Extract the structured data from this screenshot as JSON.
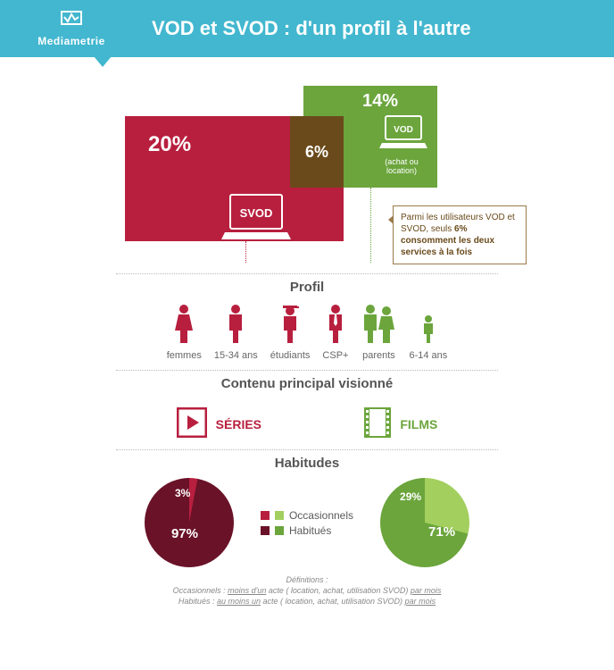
{
  "brand": "Mediametrie",
  "title": "VOD et SVOD : d'un profil à l'autre",
  "colors": {
    "header": "#42b7cf",
    "svod": "#b81f3e",
    "svod_dark": "#6a1228",
    "vod": "#6ba53c",
    "vod_light": "#a3cf5f",
    "overlap": "#6a4a1b",
    "text": "#5a5a5a"
  },
  "venn": {
    "svod_pct": "20%",
    "svod_label": "SVOD",
    "overlap_pct": "6%",
    "vod_pct": "14%",
    "vod_label": "VOD",
    "vod_sub": "(achat ou location)",
    "callout_pre": "Parmi les utilisateurs VOD et SVOD, seuls ",
    "callout_bold": "6% consomment les deux services à la fois"
  },
  "sections": {
    "profil": "Profil",
    "contenu": "Contenu principal visionné",
    "habitudes": "Habitudes"
  },
  "profil_items": [
    {
      "label": "femmes",
      "color": "svod",
      "kind": "woman"
    },
    {
      "label": "15-34 ans",
      "color": "svod",
      "kind": "man"
    },
    {
      "label": "étudiants",
      "color": "svod",
      "kind": "cap"
    },
    {
      "label": "CSP+",
      "color": "svod",
      "kind": "tie"
    },
    {
      "label": "parents",
      "color": "vod",
      "kind": "parents"
    },
    {
      "label": "6-14 ans",
      "color": "vod",
      "kind": "child"
    }
  ],
  "content_items": {
    "series": {
      "label": "SÉRIES",
      "icon": "play"
    },
    "films": {
      "label": "FILMS",
      "icon": "film"
    }
  },
  "habitudes": {
    "legend": {
      "occasionnels": "Occasionnels",
      "habitues": "Habitués"
    },
    "svod_pie": {
      "occasionnels": 3,
      "habitues": 97,
      "occ_label": "3%",
      "hab_label": "97%"
    },
    "vod_pie": {
      "occasionnels": 29,
      "habitues": 71,
      "occ_label": "29%",
      "hab_label": "71%"
    }
  },
  "footer": {
    "l1": "Définitions :",
    "l2_a": "Occasionnels : ",
    "l2_u": "moins d'un",
    "l2_b": " acte ( location, achat, utilisation SVOD) ",
    "l2_u2": "par mois",
    "l3_a": "Habitués : ",
    "l3_u": "au moins un",
    "l3_b": " acte ( location, achat, utilisation SVOD) ",
    "l3_u2": "par mois"
  }
}
